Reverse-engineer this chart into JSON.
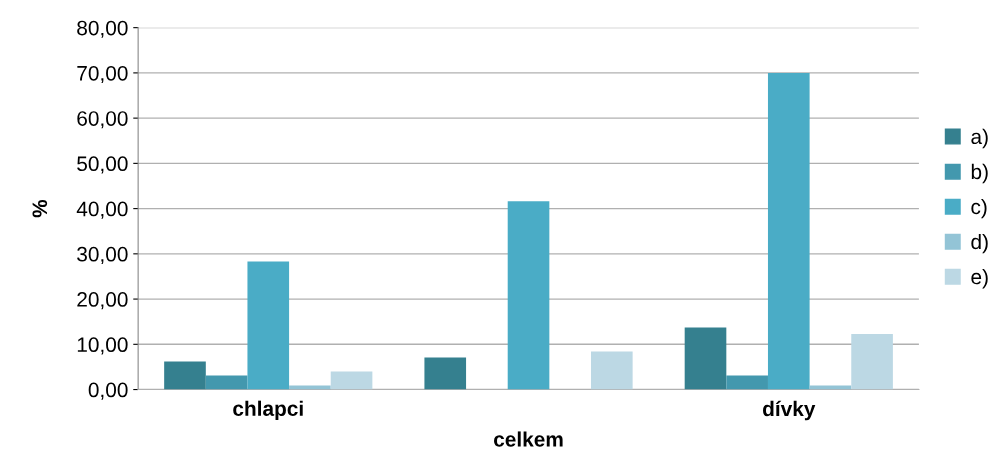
{
  "chart_data": {
    "type": "bar",
    "ylabel": "%",
    "categories": [
      "chlapci",
      "celkem",
      "dívky"
    ],
    "series": [
      {
        "name": "a)",
        "color": "#35808f",
        "values": [
          6.2,
          7.1,
          13.7
        ]
      },
      {
        "name": "b)",
        "color": "#4398ae",
        "values": [
          3.1,
          null,
          3.1
        ]
      },
      {
        "name": "c)",
        "color": "#4aacc6",
        "values": [
          28.3,
          41.6,
          70
        ]
      },
      {
        "name": "d)",
        "color": "#93c4d6",
        "values": [
          0.9,
          null,
          0.9
        ]
      },
      {
        "name": "e)",
        "color": "#bcd8e4",
        "values": [
          4.0,
          8.4,
          12.3
        ]
      }
    ],
    "ylim": [
      0,
      80
    ],
    "yticks": [
      {
        "value": 0,
        "label": "0,00"
      },
      {
        "value": 10,
        "label": "10,00"
      },
      {
        "value": 20,
        "label": "20,00"
      },
      {
        "value": 30,
        "label": "30,00"
      },
      {
        "value": 40,
        "label": "40,00"
      },
      {
        "value": 50,
        "label": "50,00"
      },
      {
        "value": 60,
        "label": "60,00"
      },
      {
        "value": 70,
        "label": "70,00"
      },
      {
        "value": 80,
        "label": "80,00"
      }
    ],
    "grid": "y",
    "legend": "right"
  }
}
